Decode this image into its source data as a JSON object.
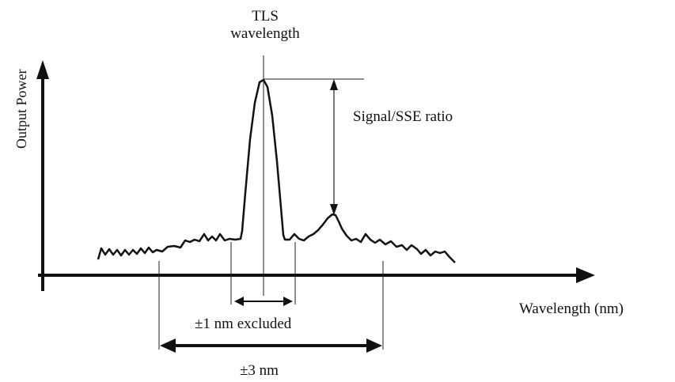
{
  "labels": {
    "tls_line1": "TLS",
    "tls_line2": "wavelength",
    "ratio": "Signal/SSE ratio",
    "x_axis": "Wavelength (nm)",
    "y_axis": "Output Power",
    "excluded": "±1 nm excluded",
    "span": "±3 nm"
  },
  "colors": {
    "ink": "#111111",
    "thin": "#222222"
  }
}
